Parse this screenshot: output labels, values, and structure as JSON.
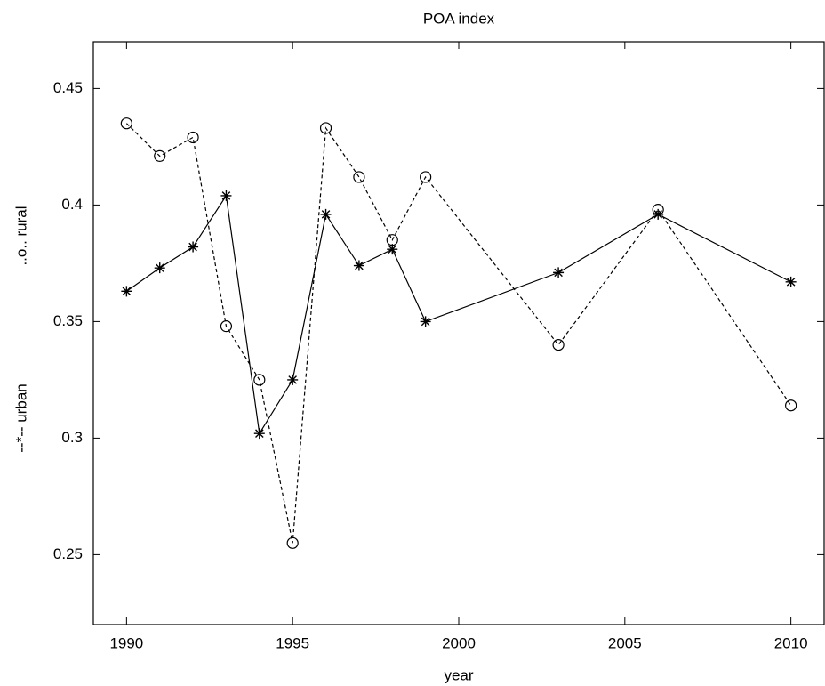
{
  "chart_data": {
    "type": "line",
    "title": "POA index",
    "xlabel": "year",
    "x": [
      1990,
      1991,
      1992,
      1993,
      1994,
      1995,
      1996,
      1997,
      1998,
      1999,
      2003,
      2006,
      2010
    ],
    "series": [
      {
        "name": "--*-- urban",
        "color": "#000000",
        "linestyle": "solid",
        "marker": "star",
        "values": [
          0.363,
          0.373,
          0.382,
          0.404,
          0.302,
          0.325,
          0.396,
          0.374,
          0.381,
          0.35,
          0.371,
          0.396,
          0.367
        ]
      },
      {
        "name": "..o.. rural",
        "color": "#000000",
        "linestyle": "dashed",
        "marker": "circle",
        "values": [
          0.435,
          0.421,
          0.429,
          0.348,
          0.325,
          0.255,
          0.433,
          0.412,
          0.385,
          0.412,
          0.34,
          0.398,
          0.314
        ]
      }
    ],
    "xlim": [
      1989,
      2011
    ],
    "xticks": [
      1990,
      1995,
      2000,
      2005,
      2010
    ],
    "ylim": [
      0.22,
      0.47
    ],
    "yticks": [
      0.25,
      0.3,
      0.35,
      0.4,
      0.45
    ]
  }
}
